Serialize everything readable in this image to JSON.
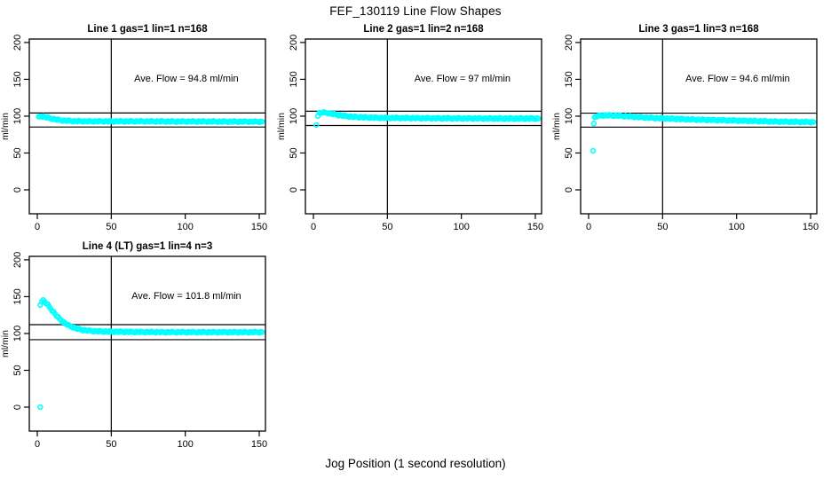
{
  "figure": {
    "title": "FEF_130119  Line Flow Shapes",
    "xlabel": "Jog Position (1 second resolution)",
    "colors": {
      "points": "#00ffff",
      "axis": "#000000",
      "background": "#ffffff"
    }
  },
  "chart_data": [
    {
      "type": "scatter",
      "title": "Line 1 gas=1 lin=1 n=168",
      "ylabel": "ml/min",
      "annotation": "Ave. Flow =  94.8  ml/min",
      "ave_flow": 94.8,
      "n": 168,
      "x_ticks": [
        0,
        50,
        100,
        150
      ],
      "y_ticks": [
        0,
        50,
        100,
        150,
        200
      ],
      "xlim": [
        -5.4,
        154.2
      ],
      "ylim": [
        -32.5,
        204.7
      ],
      "vline_x": 50,
      "hlines": [
        104.3,
        85.3
      ],
      "series": [
        {
          "name": "flow",
          "anchors": [
            [
              1,
              99
            ],
            [
              2,
              100
            ],
            [
              4,
              99.5
            ],
            [
              7,
              98
            ],
            [
              10,
              96.5
            ],
            [
              14,
              95
            ],
            [
              18,
              94
            ],
            [
              25,
              93.3
            ],
            [
              35,
              93
            ],
            [
              50,
              93
            ],
            [
              70,
              93
            ],
            [
              90,
              92.8
            ],
            [
              110,
              92.8
            ],
            [
              130,
              92.6
            ],
            [
              152,
              92.5
            ]
          ]
        }
      ],
      "outliers": []
    },
    {
      "type": "scatter",
      "title": "Line 2 gas=1 lin=2 n=168",
      "ylabel": "ml/min",
      "annotation": "Ave. Flow =  97  ml/min",
      "ave_flow": 97,
      "n": 168,
      "x_ticks": [
        0,
        50,
        100,
        150
      ],
      "y_ticks": [
        0,
        50,
        100,
        150,
        200
      ],
      "xlim": [
        -5.4,
        154.2
      ],
      "ylim": [
        -32.5,
        204.7
      ],
      "vline_x": 50,
      "hlines": [
        106.7,
        87.3
      ],
      "series": [
        {
          "name": "flow",
          "anchors": [
            [
              3,
              101
            ],
            [
              4,
              104
            ],
            [
              6,
              105
            ],
            [
              9,
              104.5
            ],
            [
              13,
              103
            ],
            [
              17,
              101.5
            ],
            [
              22,
              100
            ],
            [
              28,
              99
            ],
            [
              35,
              98.3
            ],
            [
              45,
              97.8
            ],
            [
              60,
              97.5
            ],
            [
              80,
              97.2
            ],
            [
              100,
              97
            ],
            [
              125,
              96.8
            ],
            [
              152,
              96.8
            ]
          ]
        }
      ],
      "outliers": [
        [
          2,
          88
        ]
      ]
    },
    {
      "type": "scatter",
      "title": "Line 3 gas=1 lin=3 n=168",
      "ylabel": "ml/min",
      "annotation": "Ave. Flow =  94.6  ml/min",
      "ave_flow": 94.6,
      "n": 168,
      "x_ticks": [
        0,
        50,
        100,
        150
      ],
      "y_ticks": [
        0,
        50,
        100,
        150,
        200
      ],
      "xlim": [
        -5.4,
        154.2
      ],
      "ylim": [
        -32.5,
        204.7
      ],
      "vline_x": 50,
      "hlines": [
        104.1,
        85.1
      ],
      "series": [
        {
          "name": "flow",
          "anchors": [
            [
              4,
              98
            ],
            [
              6,
              100
            ],
            [
              9,
              101
            ],
            [
              15,
              101
            ],
            [
              25,
              100
            ],
            [
              35,
              98.5
            ],
            [
              50,
              97
            ],
            [
              70,
              95.5
            ],
            [
              90,
              94.5
            ],
            [
              110,
              93.5
            ],
            [
              130,
              92.5
            ],
            [
              152,
              92
            ]
          ]
        }
      ],
      "outliers": [
        [
          3,
          53
        ],
        [
          3.5,
          90
        ]
      ]
    },
    {
      "type": "scatter",
      "title": "Line 4 (LT) gas=1 lin=4 n=3",
      "ylabel": "ml/min",
      "annotation": "Ave. Flow =  101.8  ml/min",
      "ave_flow": 101.8,
      "n": 3,
      "x_ticks": [
        0,
        50,
        100,
        150
      ],
      "y_ticks": [
        0,
        50,
        100,
        150,
        200
      ],
      "xlim": [
        -5.4,
        154.2
      ],
      "ylim": [
        -32.5,
        204.7
      ],
      "vline_x": 50,
      "hlines": [
        112.0,
        91.6
      ],
      "series": [
        {
          "name": "flow",
          "anchors": [
            [
              2,
              139
            ],
            [
              3,
              144
            ],
            [
              4,
              145
            ],
            [
              5,
              143
            ],
            [
              7,
              139
            ],
            [
              9,
              134
            ],
            [
              11,
              129
            ],
            [
              13,
              124
            ],
            [
              15,
              120
            ],
            [
              17,
              116.5
            ],
            [
              19,
              113.5
            ],
            [
              21,
              111
            ],
            [
              24,
              108.5
            ],
            [
              27,
              106.5
            ],
            [
              30,
              105
            ],
            [
              34,
              104
            ],
            [
              38,
              103.3
            ],
            [
              45,
              102.7
            ],
            [
              55,
              102.3
            ],
            [
              70,
              102
            ],
            [
              90,
              101.8
            ],
            [
              115,
              101.8
            ],
            [
              135,
              101.8
            ],
            [
              152,
              101.8
            ]
          ]
        }
      ],
      "outliers": [
        [
          2,
          0
        ]
      ]
    }
  ],
  "layout_labels": {
    "subplot_positions": [
      "top-left",
      "top-center",
      "top-right",
      "bottom-left"
    ]
  }
}
